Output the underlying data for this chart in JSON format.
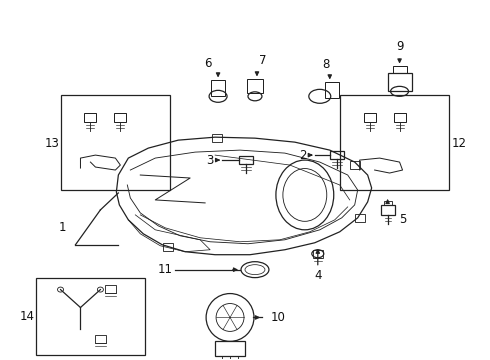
{
  "bg_color": "#ffffff",
  "line_color": "#222222",
  "text_color": "#111111",
  "fig_width": 4.9,
  "fig_height": 3.6,
  "dpi": 100
}
